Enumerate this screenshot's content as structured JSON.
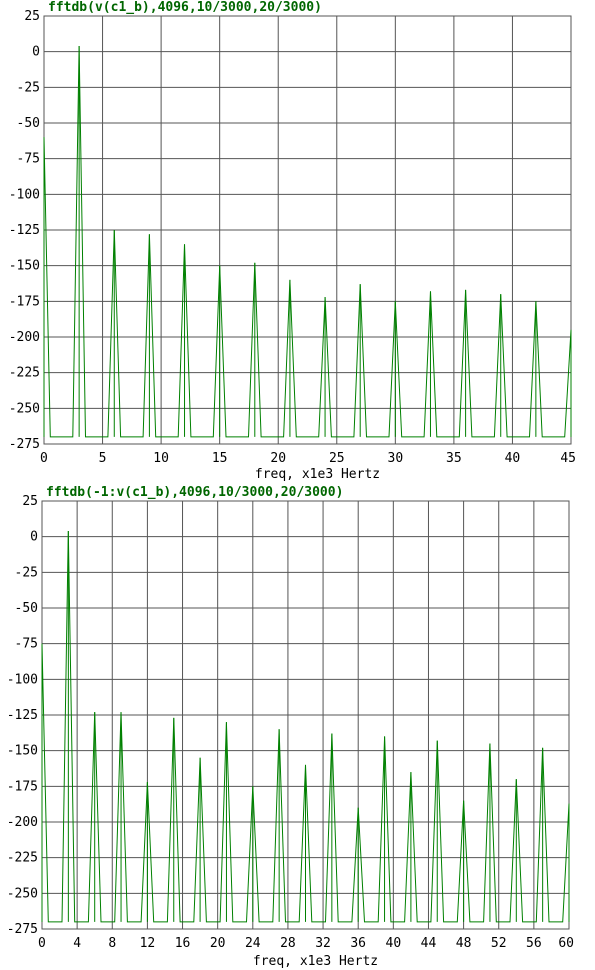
{
  "chart_data": [
    {
      "type": "line",
      "title": "fftdb(v(c1_b),4096,10/3000,20/3000)",
      "xlabel": "freq, x1e3 Hertz",
      "ylabel": "",
      "xlim": [
        0,
        45
      ],
      "ylim": [
        -275,
        25
      ],
      "xticks": [
        0,
        5,
        10,
        15,
        20,
        25,
        30,
        35,
        40,
        45
      ],
      "yticks": [
        25,
        0,
        -25,
        -50,
        -75,
        -100,
        -125,
        -150,
        -175,
        -200,
        -225,
        -250,
        -275
      ],
      "grid": true,
      "color": "#008000",
      "floor": -270,
      "series": [
        {
          "peaks": [
            {
              "x": 0,
              "y": -60
            },
            {
              "x": 3,
              "y": 4
            },
            {
              "x": 6,
              "y": -125
            },
            {
              "x": 9,
              "y": -128
            },
            {
              "x": 12,
              "y": -135
            },
            {
              "x": 15,
              "y": -150
            },
            {
              "x": 18,
              "y": -148
            },
            {
              "x": 21,
              "y": -160
            },
            {
              "x": 24,
              "y": -172
            },
            {
              "x": 27,
              "y": -163
            },
            {
              "x": 30,
              "y": -175
            },
            {
              "x": 33,
              "y": -168
            },
            {
              "x": 36,
              "y": -167
            },
            {
              "x": 39,
              "y": -170
            },
            {
              "x": 42,
              "y": -175
            },
            {
              "x": 45,
              "y": -195
            }
          ]
        }
      ]
    },
    {
      "type": "line",
      "title": "fftdb(-1:v(c1_b),4096,10/3000,20/3000)",
      "xlabel": "freq, x1e3 Hertz",
      "ylabel": "",
      "xlim": [
        0,
        60
      ],
      "ylim": [
        -275,
        25
      ],
      "xticks": [
        0,
        4,
        8,
        12,
        16,
        20,
        24,
        28,
        32,
        36,
        40,
        44,
        48,
        52,
        56,
        60
      ],
      "yticks": [
        25,
        0,
        -25,
        -50,
        -75,
        -100,
        -125,
        -150,
        -175,
        -200,
        -225,
        -250,
        -275
      ],
      "grid": true,
      "color": "#008000",
      "floor": -270,
      "series": [
        {
          "peaks": [
            {
              "x": 0,
              "y": -75
            },
            {
              "x": 3,
              "y": 4
            },
            {
              "x": 6,
              "y": -123
            },
            {
              "x": 9,
              "y": -123
            },
            {
              "x": 12,
              "y": -172
            },
            {
              "x": 15,
              "y": -127
            },
            {
              "x": 18,
              "y": -155
            },
            {
              "x": 21,
              "y": -130
            },
            {
              "x": 24,
              "y": -175
            },
            {
              "x": 27,
              "y": -135
            },
            {
              "x": 30,
              "y": -160
            },
            {
              "x": 33,
              "y": -138
            },
            {
              "x": 36,
              "y": -190
            },
            {
              "x": 39,
              "y": -140
            },
            {
              "x": 42,
              "y": -165
            },
            {
              "x": 45,
              "y": -143
            },
            {
              "x": 48,
              "y": -185
            },
            {
              "x": 51,
              "y": -145
            },
            {
              "x": 54,
              "y": -170
            },
            {
              "x": 57,
              "y": -148
            },
            {
              "x": 60,
              "y": -187
            }
          ]
        }
      ]
    }
  ]
}
